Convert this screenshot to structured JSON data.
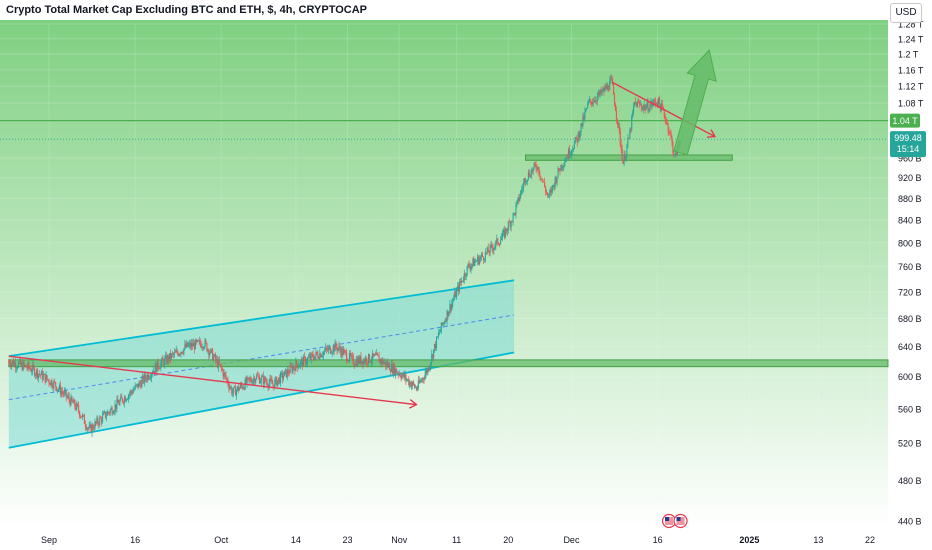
{
  "header": {
    "title": "Crypto Total Market Cap Excluding BTC and ETH, $, 4h, CRYPTOCAP",
    "currency_button": "USD"
  },
  "colors": {
    "background_top": "#7fd081",
    "background_bottom": "#ffffff",
    "candle_up": "#26a69a",
    "candle_down": "#ef5350",
    "channel_line": "#00bcd4",
    "channel_fill": "#7ddbd6",
    "support_zone": "#66bb6a",
    "resistance_line": "#4caf50",
    "arrow_red": "#e53950",
    "arrow_green": "#66bb6a",
    "price_label": "#26a69a"
  },
  "chart_data": {
    "type": "candlestick",
    "title": "Crypto Total Market Cap Excluding BTC and ETH, $, 4h, CRYPTOCAP",
    "y_unit": "USD",
    "y_scale": "log",
    "ylim": [
      430,
      1300
    ],
    "y_ticks": [
      {
        "v": 440,
        "label": "440 B"
      },
      {
        "v": 480,
        "label": "480 B"
      },
      {
        "v": 520,
        "label": "520 B"
      },
      {
        "v": 560,
        "label": "560 B"
      },
      {
        "v": 600,
        "label": "600 B"
      },
      {
        "v": 640,
        "label": "640 B"
      },
      {
        "v": 680,
        "label": "680 B"
      },
      {
        "v": 720,
        "label": "720 B"
      },
      {
        "v": 760,
        "label": "760 B"
      },
      {
        "v": 800,
        "label": "800 B"
      },
      {
        "v": 840,
        "label": "840 B"
      },
      {
        "v": 880,
        "label": "880 B"
      },
      {
        "v": 920,
        "label": "920 B"
      },
      {
        "v": 960,
        "label": "960 B"
      },
      {
        "v": 1080,
        "label": "1.08 T"
      },
      {
        "v": 1120,
        "label": "1.12 T"
      },
      {
        "v": 1160,
        "label": "1.16 T"
      },
      {
        "v": 1200,
        "label": "1.2 T"
      },
      {
        "v": 1240,
        "label": "1.24 T"
      },
      {
        "v": 1280,
        "label": "1.28 T"
      }
    ],
    "x_ticks": [
      {
        "date": "2024-09-01",
        "label": "Sep"
      },
      {
        "date": "2024-09-16",
        "label": "16"
      },
      {
        "date": "2024-10-01",
        "label": "Oct"
      },
      {
        "date": "2024-10-14",
        "label": "14"
      },
      {
        "date": "2024-10-23",
        "label": "23"
      },
      {
        "date": "2024-11-01",
        "label": "Nov"
      },
      {
        "date": "2024-11-11",
        "label": "11"
      },
      {
        "date": "2024-11-20",
        "label": "20"
      },
      {
        "date": "2024-12-01",
        "label": "Dec"
      },
      {
        "date": "2024-12-16",
        "label": "16"
      },
      {
        "date": "2025-01-01",
        "label": "2025"
      },
      {
        "date": "2025-01-13",
        "label": "13"
      },
      {
        "date": "2025-01-22",
        "label": "22"
      }
    ],
    "price_path": [
      [
        "2024-08-25",
        620
      ],
      [
        "2024-08-29",
        610
      ],
      [
        "2024-09-02",
        590
      ],
      [
        "2024-09-06",
        560
      ],
      [
        "2024-09-08",
        535
      ],
      [
        "2024-09-12",
        560
      ],
      [
        "2024-09-16",
        585
      ],
      [
        "2024-09-20",
        615
      ],
      [
        "2024-09-25",
        640
      ],
      [
        "2024-09-28",
        645
      ],
      [
        "2024-10-01",
        610
      ],
      [
        "2024-10-03",
        580
      ],
      [
        "2024-10-07",
        600
      ],
      [
        "2024-10-10",
        590
      ],
      [
        "2024-10-14",
        615
      ],
      [
        "2024-10-18",
        630
      ],
      [
        "2024-10-21",
        640
      ],
      [
        "2024-10-24",
        620
      ],
      [
        "2024-10-28",
        625
      ],
      [
        "2024-11-01",
        605
      ],
      [
        "2024-11-04",
        585
      ],
      [
        "2024-11-06",
        610
      ],
      [
        "2024-11-08",
        660
      ],
      [
        "2024-11-11",
        720
      ],
      [
        "2024-11-13",
        760
      ],
      [
        "2024-11-16",
        780
      ],
      [
        "2024-11-19",
        810
      ],
      [
        "2024-11-21",
        850
      ],
      [
        "2024-11-23",
        920
      ],
      [
        "2024-11-25",
        945
      ],
      [
        "2024-11-27",
        880
      ],
      [
        "2024-11-29",
        940
      ],
      [
        "2024-12-02",
        1000
      ],
      [
        "2024-12-04",
        1080
      ],
      [
        "2024-12-06",
        1100
      ],
      [
        "2024-12-08",
        1130
      ],
      [
        "2024-12-09",
        1040
      ],
      [
        "2024-12-10",
        950
      ],
      [
        "2024-12-11",
        1000
      ],
      [
        "2024-12-12",
        1080
      ],
      [
        "2024-12-14",
        1070
      ],
      [
        "2024-12-16",
        1085
      ],
      [
        "2024-12-17",
        1060
      ],
      [
        "2024-12-18",
        1020
      ],
      [
        "2024-12-19",
        960
      ],
      [
        "2024-12-20",
        999.4
      ]
    ],
    "last_price": {
      "label": "999.48",
      "countdown": "15:14"
    },
    "horizontal_line": {
      "value": 1040,
      "label": "1.04 T"
    },
    "annotations": {
      "ascending_channel": {
        "lower": [
          [
            "2024-08-25",
            515
          ],
          [
            "2024-11-21",
            632
          ]
        ],
        "upper": [
          [
            "2024-08-25",
            627
          ],
          [
            "2024-11-21",
            738
          ]
        ],
        "mid": [
          [
            "2024-08-25",
            571
          ],
          [
            "2024-11-21",
            685
          ]
        ]
      },
      "support_zone_lower": {
        "from": "2024-08-25",
        "to": "2025-01-27",
        "low": 613,
        "high": 622
      },
      "support_zone_upper": {
        "from": "2024-11-23",
        "to": "2024-12-29",
        "low": 955,
        "high": 966
      },
      "red_arrow_down": {
        "from": [
          "2024-08-25",
          627
        ],
        "to": [
          "2024-11-04",
          565
        ]
      },
      "red_arrow_resistance": {
        "from": [
          "2024-12-08",
          1130
        ],
        "to": [
          "2024-12-26",
          1005
        ]
      },
      "green_arrow_up": {
        "from": [
          "2024-12-20",
          970
        ],
        "to": [
          "2024-12-25",
          1210
        ]
      }
    },
    "event_markers": [
      {
        "date": "2024-12-18",
        "icon": "us-flag-icon"
      },
      {
        "date": "2024-12-20",
        "icon": "us-flag-icon"
      }
    ]
  }
}
